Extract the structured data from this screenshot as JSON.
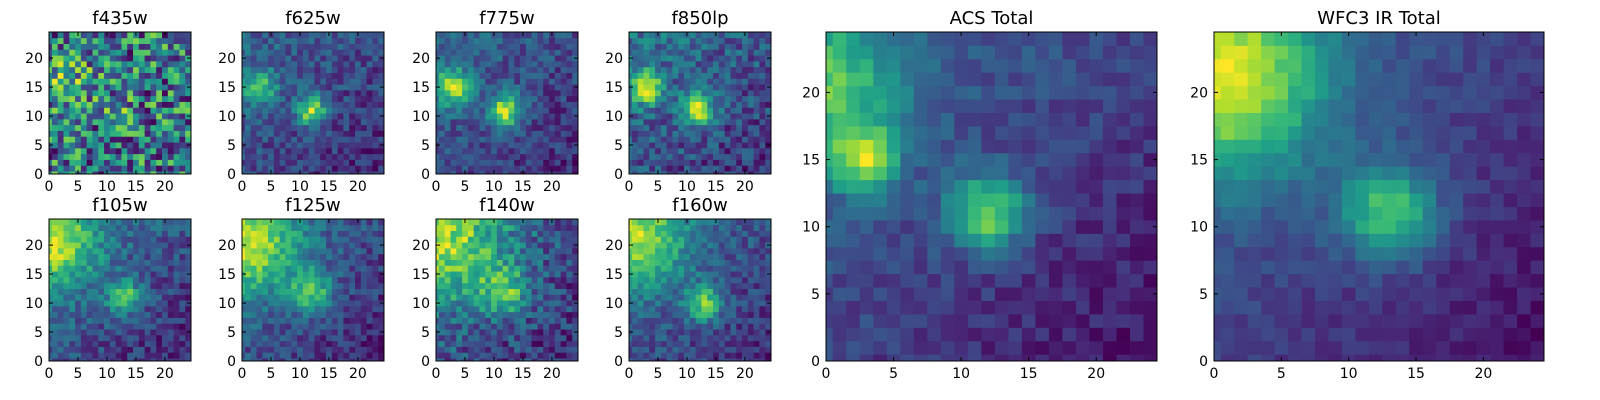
{
  "chart_data": {
    "type": "heatmap",
    "colormap": "viridis",
    "grid_size": 25,
    "panels": [
      {
        "title": "f435w",
        "xticks": [
          0,
          5,
          10,
          15,
          20
        ],
        "yticks": [
          0,
          5,
          10,
          15,
          20
        ],
        "sources": [
          {
            "x": 3,
            "y": 16,
            "amp": 0.12,
            "sigma": 3
          },
          {
            "x": 12,
            "y": 11,
            "amp": 0.08,
            "sigma": 2
          }
        ],
        "background": 0.5,
        "gradient": 0.0,
        "noise": 0.4
      },
      {
        "title": "f625w",
        "xticks": [
          0,
          5,
          10,
          15,
          20
        ],
        "yticks": [
          0,
          5,
          10,
          15,
          20
        ],
        "sources": [
          {
            "x": 3,
            "y": 15,
            "amp": 0.35,
            "sigma": 2.2
          },
          {
            "x": 12,
            "y": 11,
            "amp": 0.5,
            "sigma": 1.8
          }
        ],
        "background": 0.4,
        "gradient": 0.08,
        "noise": 0.22
      },
      {
        "title": "f775w",
        "xticks": [
          0,
          5,
          10,
          15,
          20
        ],
        "yticks": [
          0,
          5,
          10,
          15,
          20
        ],
        "sources": [
          {
            "x": 3,
            "y": 15,
            "amp": 0.45,
            "sigma": 2.2
          },
          {
            "x": 12,
            "y": 11,
            "amp": 0.5,
            "sigma": 2
          }
        ],
        "background": 0.38,
        "gradient": 0.08,
        "noise": 0.2
      },
      {
        "title": "f850lp",
        "xticks": [
          0,
          5,
          10,
          15,
          20
        ],
        "yticks": [
          0,
          5,
          10,
          15,
          20
        ],
        "sources": [
          {
            "x": 3,
            "y": 15,
            "amp": 0.45,
            "sigma": 2
          },
          {
            "x": 12,
            "y": 11,
            "amp": 0.45,
            "sigma": 2
          }
        ],
        "background": 0.4,
        "gradient": 0.08,
        "noise": 0.24
      },
      {
        "title": "f105w",
        "xticks": [
          0,
          5,
          10,
          15,
          20
        ],
        "yticks": [
          0,
          5,
          10,
          15,
          20
        ],
        "sources": [
          {
            "x": 1,
            "y": 20,
            "amp": 0.35,
            "sigma": 5
          },
          {
            "x": 13,
            "y": 11,
            "amp": 0.35,
            "sigma": 2
          }
        ],
        "background": 0.38,
        "gradient": 0.12,
        "noise": 0.2
      },
      {
        "title": "f125w",
        "xticks": [
          0,
          5,
          10,
          15,
          20
        ],
        "yticks": [
          0,
          5,
          10,
          15,
          20
        ],
        "sources": [
          {
            "x": 1,
            "y": 20,
            "amp": 0.4,
            "sigma": 6
          },
          {
            "x": 12,
            "y": 12,
            "amp": 0.35,
            "sigma": 2.5
          }
        ],
        "background": 0.4,
        "gradient": 0.12,
        "noise": 0.2
      },
      {
        "title": "f140w",
        "xticks": [
          0,
          5,
          10,
          15,
          20
        ],
        "yticks": [
          0,
          5,
          10,
          15,
          20
        ],
        "sources": [
          {
            "x": 2,
            "y": 20,
            "amp": 0.3,
            "sigma": 7
          },
          {
            "x": 12,
            "y": 12,
            "amp": 0.25,
            "sigma": 3
          }
        ],
        "background": 0.48,
        "gradient": 0.08,
        "noise": 0.22
      },
      {
        "title": "f160w",
        "xticks": [
          0,
          5,
          10,
          15,
          20
        ],
        "yticks": [
          0,
          5,
          10,
          15,
          20
        ],
        "sources": [
          {
            "x": 1,
            "y": 21,
            "amp": 0.4,
            "sigma": 6
          },
          {
            "x": 13,
            "y": 10,
            "amp": 0.4,
            "sigma": 2.2
          }
        ],
        "background": 0.35,
        "gradient": 0.1,
        "noise": 0.2
      },
      {
        "title": "ACS Total",
        "xticks": [
          0,
          5,
          10,
          15,
          20
        ],
        "yticks": [
          0,
          5,
          10,
          15,
          20
        ],
        "sources": [
          {
            "x": 3,
            "y": 15,
            "amp": 0.45,
            "sigma": 1.6
          },
          {
            "x": 12,
            "y": 11,
            "amp": 0.5,
            "sigma": 2
          },
          {
            "x": 0,
            "y": 20,
            "amp": 0.35,
            "sigma": 4
          }
        ],
        "background": 0.35,
        "gradient": 0.12,
        "noise": 0.14
      },
      {
        "title": "WFC3 IR Total",
        "xticks": [
          0,
          5,
          10,
          15,
          20
        ],
        "yticks": [
          0,
          5,
          10,
          15,
          20
        ],
        "sources": [
          {
            "x": 1,
            "y": 21,
            "amp": 0.55,
            "sigma": 5
          },
          {
            "x": 13,
            "y": 11,
            "amp": 0.45,
            "sigma": 2.5
          }
        ],
        "background": 0.28,
        "gradient": 0.12,
        "noise": 0.1
      }
    ]
  }
}
